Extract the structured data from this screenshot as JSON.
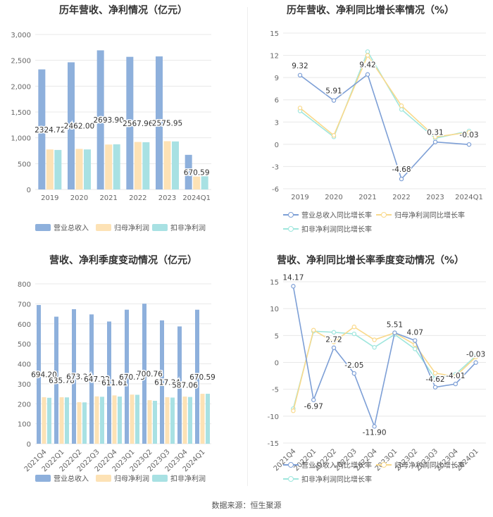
{
  "footer": "数据来源：恒生聚源",
  "colors": {
    "revenue": "#8eb0dc",
    "netprofit": "#fde2b5",
    "deducted": "#a8e1e3",
    "revenue_line": "#7d9fd6",
    "netprofit_line": "#f9d98b",
    "deducted_line": "#9fe6dd",
    "grid": "#e8e8e8"
  },
  "panels": {
    "p1": {
      "title": "历年营收、净利情况（亿元）",
      "legend": [
        "营业总收入",
        "归母净利润",
        "扣非净利润"
      ]
    },
    "p2": {
      "title": "历年营收、净利同比增长率情况（%）",
      "legend": [
        "营业总收入同比增长率",
        "归母净利润同比增长率",
        "扣非净利润同比增长率"
      ]
    },
    "p3": {
      "title": "营收、净利季度变动情况（亿元）",
      "legend": [
        "营业总收入",
        "归母净利润",
        "扣非净利润"
      ]
    },
    "p4": {
      "title": "营收、净利同比增长率季度变动情况（%）",
      "legend": [
        "营业总收入同比增长率",
        "归母净利润同比增长率",
        "扣非净利润同比增长率"
      ]
    }
  },
  "chart_data": [
    {
      "type": "bar",
      "title": "历年营收、净利情况（亿元）",
      "categories": [
        "2019",
        "2020",
        "2021",
        "2022",
        "2023",
        "2024Q1"
      ],
      "ylim": [
        0,
        3000
      ],
      "yticks": [
        "0",
        "500",
        "1,000",
        "1,500",
        "2,000",
        "2,500",
        "3,000"
      ],
      "series": [
        {
          "name": "营业总收入",
          "values": [
            2324.72,
            2462.0,
            2693.9,
            2567.96,
            2575.95,
            670.59
          ],
          "labels": [
            "2324.72",
            "2462.00",
            "2693.90",
            "2567.96",
            "2575.95",
            "670.59"
          ]
        },
        {
          "name": "归母净利润",
          "values": [
            775,
            785,
            870,
            920,
            935,
            250
          ]
        },
        {
          "name": "扣非净利润",
          "values": [
            765,
            775,
            875,
            915,
            930,
            255
          ]
        }
      ]
    },
    {
      "type": "line",
      "title": "历年营收、净利同比增长率情况（%）",
      "categories": [
        "2019",
        "2020",
        "2021",
        "2022",
        "2023",
        "2024Q1"
      ],
      "ylim": [
        -6,
        15
      ],
      "yticks": [
        "-6",
        "-3",
        "0",
        "3",
        "6",
        "9",
        "12",
        "15"
      ],
      "series": [
        {
          "name": "营业总收入同比增长率",
          "values": [
            9.32,
            5.91,
            9.42,
            -4.68,
            0.31,
            -0.03
          ],
          "labels": [
            "9.32",
            "5.91",
            "9.42",
            "-4.68",
            "0.31",
            "-0.03"
          ]
        },
        {
          "name": "归母净利润同比增长率",
          "values": [
            4.9,
            1.2,
            12.0,
            5.2,
            1.0,
            1.6
          ]
        },
        {
          "name": "扣非净利润同比增长率",
          "values": [
            4.5,
            1.0,
            12.5,
            4.7,
            0.8,
            1.8
          ]
        }
      ]
    },
    {
      "type": "bar",
      "title": "营收、净利季度变动情况（亿元）",
      "categories": [
        "2021Q4",
        "2022Q1",
        "2022Q2",
        "2022Q3",
        "2022Q4",
        "2023Q1",
        "2023Q2",
        "2023Q3",
        "2023Q4",
        "2024Q1"
      ],
      "ylim": [
        0,
        800
      ],
      "yticks": [
        "0",
        "100",
        "200",
        "300",
        "400",
        "500",
        "600",
        "700",
        "800"
      ],
      "series": [
        {
          "name": "营业总收入",
          "values": [
            694.2,
            635.78,
            673.34,
            647.22,
            611.61,
            670.73,
            700.76,
            617.34,
            587.06,
            670.59
          ],
          "labels": [
            "694.20",
            "635.78",
            "673.34",
            "647.22",
            "611.61",
            "670.73",
            "700.76",
            "617.34",
            "587.06",
            "670.59"
          ]
        },
        {
          "name": "归母净利润",
          "values": [
            233,
            233,
            208,
            237,
            242,
            246,
            218,
            233,
            236,
            250
          ]
        },
        {
          "name": "扣非净利润",
          "values": [
            230,
            232,
            207,
            235,
            236,
            245,
            215,
            231,
            234,
            250
          ]
        }
      ]
    },
    {
      "type": "line",
      "title": "营收、净利同比增长率季度变动情况（%）",
      "categories": [
        "2021Q4",
        "2022Q1",
        "2022Q2",
        "2022Q3",
        "2022Q4",
        "2023Q1",
        "2023Q2",
        "2023Q3",
        "2023Q4",
        "2024Q1"
      ],
      "ylim": [
        -15,
        15
      ],
      "yticks": [
        "-15",
        "-10",
        "-5",
        "0",
        "5",
        "10",
        "15"
      ],
      "series": [
        {
          "name": "营业总收入同比增长率",
          "values": [
            14.17,
            -6.97,
            2.72,
            -2.05,
            -11.9,
            5.51,
            4.07,
            -4.62,
            -4.01,
            -0.03
          ],
          "labels": [
            "14.17",
            "-6.97",
            "2.72",
            "-2.05",
            "-11.90",
            "5.51",
            "4.07",
            "-4.62",
            "-4.01",
            "-0.03"
          ]
        },
        {
          "name": "归母净利润同比增长率",
          "values": [
            -9.0,
            6.0,
            3.8,
            6.6,
            4.2,
            5.5,
            3.3,
            -2.0,
            -2.6,
            1.0
          ]
        },
        {
          "name": "扣非净利润同比增长率",
          "values": [
            -8.6,
            5.8,
            5.6,
            5.3,
            2.8,
            5.2,
            2.5,
            -3.0,
            -2.2,
            1.2
          ]
        }
      ]
    }
  ]
}
